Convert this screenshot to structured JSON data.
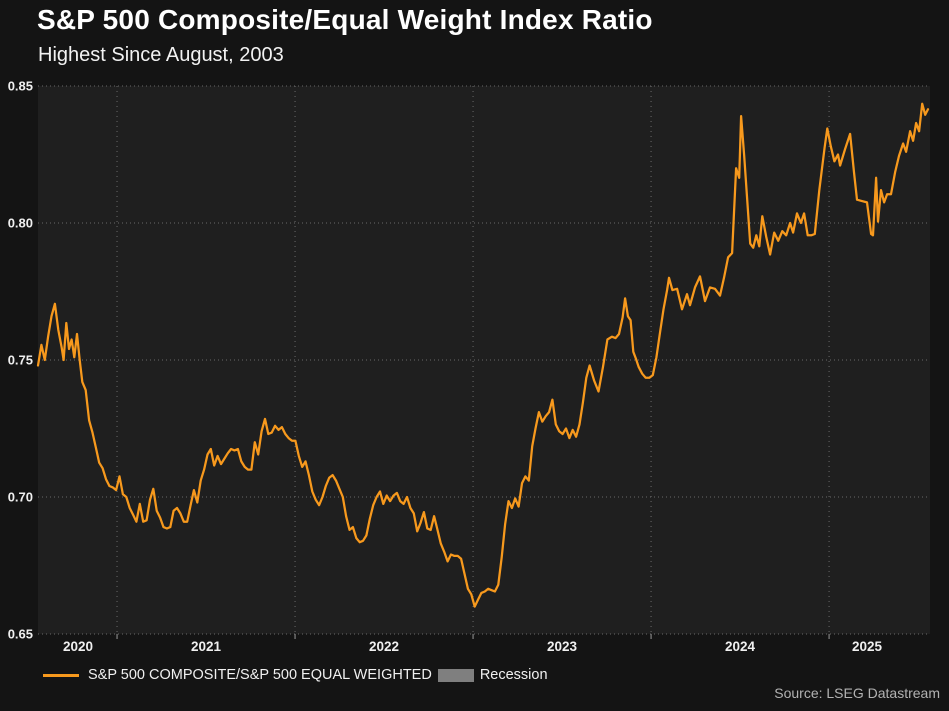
{
  "header": {
    "title": "S&P 500 Composite/Equal Weight Index Ratio",
    "subtitle": "Highest Since August, 2003"
  },
  "source": "Source: LSEG Datastream",
  "legend": [
    {
      "label": "S&P 500 COMPOSITE/S&P 500 EQUAL WEIGHTED",
      "swatch": "line",
      "color": "#f7991d"
    },
    {
      "label": "Recession",
      "swatch": "box",
      "color": "#7f7f7f"
    }
  ],
  "colors": {
    "outer_background": "#141414",
    "plot_background": "#1f1f1f",
    "gridline": "#6a6a6a",
    "axis_text": "#f0f0f0",
    "line": "#f7991d",
    "tick": "#9a9a9a"
  },
  "chart_data": {
    "type": "line",
    "title": "S&P 500 Composite/Equal Weight Index Ratio",
    "subtitle": "Highest Since August, 2003",
    "xlabel": "",
    "ylabel": "",
    "x_domain": [
      2020.556,
      2025.567
    ],
    "y_domain": [
      0.65,
      0.85
    ],
    "grid": true,
    "legend_position": "bottom",
    "y_ticks": [
      {
        "v": 0.85,
        "label": "0.85"
      },
      {
        "v": 0.8,
        "label": "0.80"
      },
      {
        "v": 0.75,
        "label": "0.75"
      },
      {
        "v": 0.7,
        "label": "0.70"
      },
      {
        "v": 0.65,
        "label": "0.65"
      }
    ],
    "x_gridlines": [
      2021,
      2022,
      2023,
      2024,
      2025
    ],
    "x_labels": [
      {
        "t": 2020.781,
        "label": "2020"
      },
      {
        "t": 2021.5,
        "label": "2021"
      },
      {
        "t": 2022.5,
        "label": "2022"
      },
      {
        "t": 2023.5,
        "label": "2023"
      },
      {
        "t": 2024.5,
        "label": "2024"
      },
      {
        "t": 2025.213,
        "label": "2025"
      }
    ],
    "series": [
      {
        "name": "S&P 500 COMPOSITE/S&P 500 EQUAL WEIGHTED",
        "color": "#f7991d",
        "points": [
          [
            2020.556,
            0.748
          ],
          [
            2020.575,
            0.7555
          ],
          [
            2020.594,
            0.75
          ],
          [
            2020.613,
            0.7585
          ],
          [
            2020.632,
            0.766
          ],
          [
            2020.651,
            0.7705
          ],
          [
            2020.67,
            0.761
          ],
          [
            2020.689,
            0.7545
          ],
          [
            2020.7,
            0.75
          ],
          [
            2020.715,
            0.7635
          ],
          [
            2020.73,
            0.754
          ],
          [
            2020.745,
            0.7575
          ],
          [
            2020.76,
            0.751
          ],
          [
            2020.775,
            0.7595
          ],
          [
            2020.79,
            0.75
          ],
          [
            2020.805,
            0.742
          ],
          [
            2020.824,
            0.739
          ],
          [
            2020.843,
            0.728
          ],
          [
            2020.862,
            0.7235
          ],
          [
            2020.881,
            0.718
          ],
          [
            2020.9,
            0.7125
          ],
          [
            2020.919,
            0.7105
          ],
          [
            2020.938,
            0.7065
          ],
          [
            2020.957,
            0.704
          ],
          [
            2020.976,
            0.7035
          ],
          [
            2020.995,
            0.7025
          ],
          [
            2021.014,
            0.7075
          ],
          [
            2021.033,
            0.701
          ],
          [
            2021.052,
            0.7
          ],
          [
            2021.071,
            0.696
          ],
          [
            2021.09,
            0.6935
          ],
          [
            2021.109,
            0.691
          ],
          [
            2021.128,
            0.6975
          ],
          [
            2021.147,
            0.691
          ],
          [
            2021.166,
            0.6915
          ],
          [
            2021.185,
            0.699
          ],
          [
            2021.204,
            0.703
          ],
          [
            2021.223,
            0.695
          ],
          [
            2021.242,
            0.6925
          ],
          [
            2021.261,
            0.689
          ],
          [
            2021.28,
            0.6885
          ],
          [
            2021.299,
            0.689
          ],
          [
            2021.318,
            0.695
          ],
          [
            2021.337,
            0.696
          ],
          [
            2021.356,
            0.694
          ],
          [
            2021.375,
            0.691
          ],
          [
            2021.394,
            0.691
          ],
          [
            2021.413,
            0.697
          ],
          [
            2021.432,
            0.7025
          ],
          [
            2021.451,
            0.698
          ],
          [
            2021.47,
            0.706
          ],
          [
            2021.489,
            0.71
          ],
          [
            2021.508,
            0.7155
          ],
          [
            2021.527,
            0.7175
          ],
          [
            2021.546,
            0.7115
          ],
          [
            2021.565,
            0.715
          ],
          [
            2021.584,
            0.712
          ],
          [
            2021.603,
            0.714
          ],
          [
            2021.622,
            0.716
          ],
          [
            2021.641,
            0.7175
          ],
          [
            2021.66,
            0.717
          ],
          [
            2021.679,
            0.7175
          ],
          [
            2021.698,
            0.713
          ],
          [
            2021.717,
            0.711
          ],
          [
            2021.736,
            0.71
          ],
          [
            2021.755,
            0.71
          ],
          [
            2021.774,
            0.72
          ],
          [
            2021.793,
            0.7155
          ],
          [
            2021.812,
            0.724
          ],
          [
            2021.831,
            0.7285
          ],
          [
            2021.85,
            0.723
          ],
          [
            2021.869,
            0.7235
          ],
          [
            2021.888,
            0.726
          ],
          [
            2021.907,
            0.7245
          ],
          [
            2021.926,
            0.7255
          ],
          [
            2021.945,
            0.723
          ],
          [
            2021.964,
            0.7215
          ],
          [
            2021.983,
            0.7205
          ],
          [
            2022.002,
            0.7205
          ],
          [
            2022.021,
            0.715
          ],
          [
            2022.04,
            0.711
          ],
          [
            2022.059,
            0.713
          ],
          [
            2022.078,
            0.708
          ],
          [
            2022.097,
            0.702
          ],
          [
            2022.116,
            0.699
          ],
          [
            2022.135,
            0.697
          ],
          [
            2022.154,
            0.7
          ],
          [
            2022.173,
            0.704
          ],
          [
            2022.192,
            0.707
          ],
          [
            2022.211,
            0.708
          ],
          [
            2022.23,
            0.706
          ],
          [
            2022.249,
            0.703
          ],
          [
            2022.268,
            0.7
          ],
          [
            2022.287,
            0.693
          ],
          [
            2022.306,
            0.688
          ],
          [
            2022.325,
            0.689
          ],
          [
            2022.344,
            0.685
          ],
          [
            2022.363,
            0.6835
          ],
          [
            2022.382,
            0.684
          ],
          [
            2022.401,
            0.686
          ],
          [
            2022.42,
            0.692
          ],
          [
            2022.439,
            0.697
          ],
          [
            2022.458,
            0.7
          ],
          [
            2022.477,
            0.702
          ],
          [
            2022.496,
            0.6975
          ],
          [
            2022.515,
            0.7005
          ],
          [
            2022.534,
            0.6985
          ],
          [
            2022.553,
            0.7005
          ],
          [
            2022.572,
            0.7015
          ],
          [
            2022.591,
            0.6985
          ],
          [
            2022.61,
            0.6975
          ],
          [
            2022.629,
            0.7
          ],
          [
            2022.648,
            0.696
          ],
          [
            2022.667,
            0.694
          ],
          [
            2022.686,
            0.6875
          ],
          [
            2022.705,
            0.6905
          ],
          [
            2022.724,
            0.6945
          ],
          [
            2022.743,
            0.6885
          ],
          [
            2022.762,
            0.688
          ],
          [
            2022.781,
            0.693
          ],
          [
            2022.8,
            0.688
          ],
          [
            2022.819,
            0.683
          ],
          [
            2022.838,
            0.68
          ],
          [
            2022.857,
            0.6765
          ],
          [
            2022.876,
            0.679
          ],
          [
            2022.895,
            0.6785
          ],
          [
            2022.914,
            0.6785
          ],
          [
            2022.933,
            0.6775
          ],
          [
            2022.952,
            0.672
          ],
          [
            2022.971,
            0.6665
          ],
          [
            2022.99,
            0.6645
          ],
          [
            2023.009,
            0.66
          ],
          [
            2023.028,
            0.6625
          ],
          [
            2023.047,
            0.665
          ],
          [
            2023.066,
            0.6655
          ],
          [
            2023.085,
            0.6665
          ],
          [
            2023.104,
            0.666
          ],
          [
            2023.123,
            0.6655
          ],
          [
            2023.142,
            0.668
          ],
          [
            2023.161,
            0.678
          ],
          [
            2023.18,
            0.69
          ],
          [
            2023.199,
            0.6985
          ],
          [
            2023.218,
            0.696
          ],
          [
            2023.237,
            0.6995
          ],
          [
            2023.256,
            0.6965
          ],
          [
            2023.275,
            0.705
          ],
          [
            2023.294,
            0.7075
          ],
          [
            2023.313,
            0.706
          ],
          [
            2023.332,
            0.7185
          ],
          [
            2023.351,
            0.725
          ],
          [
            2023.37,
            0.731
          ],
          [
            2023.389,
            0.7275
          ],
          [
            2023.408,
            0.7295
          ],
          [
            2023.427,
            0.731
          ],
          [
            2023.446,
            0.7355
          ],
          [
            2023.465,
            0.7265
          ],
          [
            2023.484,
            0.724
          ],
          [
            2023.503,
            0.723
          ],
          [
            2023.522,
            0.725
          ],
          [
            2023.541,
            0.7215
          ],
          [
            2023.56,
            0.7245
          ],
          [
            2023.579,
            0.722
          ],
          [
            2023.598,
            0.7265
          ],
          [
            2023.617,
            0.7345
          ],
          [
            2023.636,
            0.7435
          ],
          [
            2023.655,
            0.748
          ],
          [
            2023.68,
            0.7425
          ],
          [
            2023.705,
            0.7385
          ],
          [
            2023.73,
            0.7475
          ],
          [
            2023.755,
            0.7575
          ],
          [
            2023.78,
            0.7585
          ],
          [
            2023.8,
            0.758
          ],
          [
            2023.82,
            0.7595
          ],
          [
            2023.84,
            0.7655
          ],
          [
            2023.854,
            0.7725
          ],
          [
            2023.87,
            0.766
          ],
          [
            2023.885,
            0.7645
          ],
          [
            2023.9,
            0.753
          ],
          [
            2023.915,
            0.7505
          ],
          [
            2023.93,
            0.7475
          ],
          [
            2023.95,
            0.745
          ],
          [
            2023.97,
            0.7435
          ],
          [
            2023.99,
            0.7435
          ],
          [
            2024.01,
            0.7445
          ],
          [
            2024.03,
            0.751
          ],
          [
            2024.05,
            0.76
          ],
          [
            2024.07,
            0.7685
          ],
          [
            2024.09,
            0.7755
          ],
          [
            2024.101,
            0.78
          ],
          [
            2024.12,
            0.7755
          ],
          [
            2024.146,
            0.776
          ],
          [
            2024.174,
            0.7685
          ],
          [
            2024.202,
            0.774
          ],
          [
            2024.219,
            0.77
          ],
          [
            2024.247,
            0.7765
          ],
          [
            2024.275,
            0.7805
          ],
          [
            2024.303,
            0.7715
          ],
          [
            2024.331,
            0.7765
          ],
          [
            2024.359,
            0.776
          ],
          [
            2024.387,
            0.7735
          ],
          [
            2024.41,
            0.78
          ],
          [
            2024.433,
            0.7875
          ],
          [
            2024.455,
            0.789
          ],
          [
            2024.478,
            0.82
          ],
          [
            2024.495,
            0.8165
          ],
          [
            2024.506,
            0.839
          ],
          [
            2024.523,
            0.8245
          ],
          [
            2024.54,
            0.8085
          ],
          [
            2024.557,
            0.7925
          ],
          [
            2024.574,
            0.791
          ],
          [
            2024.591,
            0.7955
          ],
          [
            2024.608,
            0.7915
          ],
          [
            2024.625,
            0.8025
          ],
          [
            2024.647,
            0.795
          ],
          [
            2024.669,
            0.7885
          ],
          [
            2024.692,
            0.7965
          ],
          [
            2024.714,
            0.7935
          ],
          [
            2024.737,
            0.797
          ],
          [
            2024.759,
            0.7955
          ],
          [
            2024.781,
            0.8
          ],
          [
            2024.798,
            0.7965
          ],
          [
            2024.82,
            0.8035
          ],
          [
            2024.842,
            0.8
          ],
          [
            2024.86,
            0.8035
          ],
          [
            2024.88,
            0.7955
          ],
          [
            2024.9,
            0.7955
          ],
          [
            2024.92,
            0.796
          ],
          [
            2024.945,
            0.812
          ],
          [
            2024.975,
            0.8275
          ],
          [
            2024.99,
            0.8345
          ],
          [
            2025.01,
            0.828
          ],
          [
            2025.03,
            0.8225
          ],
          [
            2025.05,
            0.825
          ],
          [
            2025.062,
            0.821
          ],
          [
            2025.09,
            0.827
          ],
          [
            2025.118,
            0.8325
          ],
          [
            2025.14,
            0.8185
          ],
          [
            2025.157,
            0.8085
          ],
          [
            2025.185,
            0.808
          ],
          [
            2025.213,
            0.8075
          ],
          [
            2025.236,
            0.796
          ],
          [
            2025.247,
            0.7955
          ],
          [
            2025.264,
            0.8165
          ],
          [
            2025.275,
            0.8005
          ],
          [
            2025.292,
            0.812
          ],
          [
            2025.309,
            0.8075
          ],
          [
            2025.326,
            0.8105
          ],
          [
            2025.348,
            0.8105
          ],
          [
            2025.371,
            0.8185
          ],
          [
            2025.393,
            0.8245
          ],
          [
            2025.416,
            0.829
          ],
          [
            2025.433,
            0.826
          ],
          [
            2025.455,
            0.8335
          ],
          [
            2025.472,
            0.83
          ],
          [
            2025.489,
            0.8365
          ],
          [
            2025.506,
            0.8335
          ],
          [
            2025.523,
            0.8435
          ],
          [
            2025.54,
            0.8395
          ],
          [
            2025.556,
            0.8415
          ]
        ]
      }
    ]
  }
}
